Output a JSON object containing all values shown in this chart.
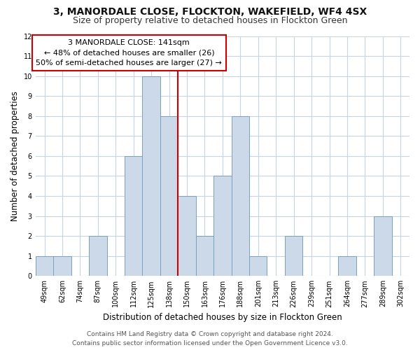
{
  "title": "3, MANORDALE CLOSE, FLOCKTON, WAKEFIELD, WF4 4SX",
  "subtitle": "Size of property relative to detached houses in Flockton Green",
  "xlabel": "Distribution of detached houses by size in Flockton Green",
  "ylabel": "Number of detached properties",
  "categories": [
    "49sqm",
    "62sqm",
    "74sqm",
    "87sqm",
    "100sqm",
    "112sqm",
    "125sqm",
    "138sqm",
    "150sqm",
    "163sqm",
    "176sqm",
    "188sqm",
    "201sqm",
    "213sqm",
    "226sqm",
    "239sqm",
    "251sqm",
    "264sqm",
    "277sqm",
    "289sqm",
    "302sqm"
  ],
  "values": [
    1,
    1,
    0,
    2,
    0,
    6,
    10,
    8,
    4,
    2,
    5,
    8,
    1,
    0,
    2,
    0,
    0,
    1,
    0,
    3,
    0
  ],
  "bar_color": "#ccd9e8",
  "bar_edge_color": "#7a9fc0",
  "highlight_line_index": 7,
  "highlight_line_color": "#cc0000",
  "ylim": [
    0,
    12
  ],
  "yticks": [
    0,
    1,
    2,
    3,
    4,
    5,
    6,
    7,
    8,
    9,
    10,
    11,
    12
  ],
  "annotation_title": "3 MANORDALE CLOSE: 141sqm",
  "annotation_line1": "← 48% of detached houses are smaller (26)",
  "annotation_line2": "50% of semi-detached houses are larger (27) →",
  "annotation_box_color": "#ffffff",
  "annotation_box_edge": "#cc0000",
  "footer1": "Contains HM Land Registry data © Crown copyright and database right 2024.",
  "footer2": "Contains public sector information licensed under the Open Government Licence v3.0.",
  "bg_color": "#ffffff",
  "plot_bg_color": "#ffffff",
  "grid_color": "#c8d4e0",
  "title_fontsize": 10,
  "subtitle_fontsize": 9,
  "axis_label_fontsize": 8.5,
  "tick_fontsize": 7,
  "footer_fontsize": 6.5,
  "annotation_fontsize": 8
}
